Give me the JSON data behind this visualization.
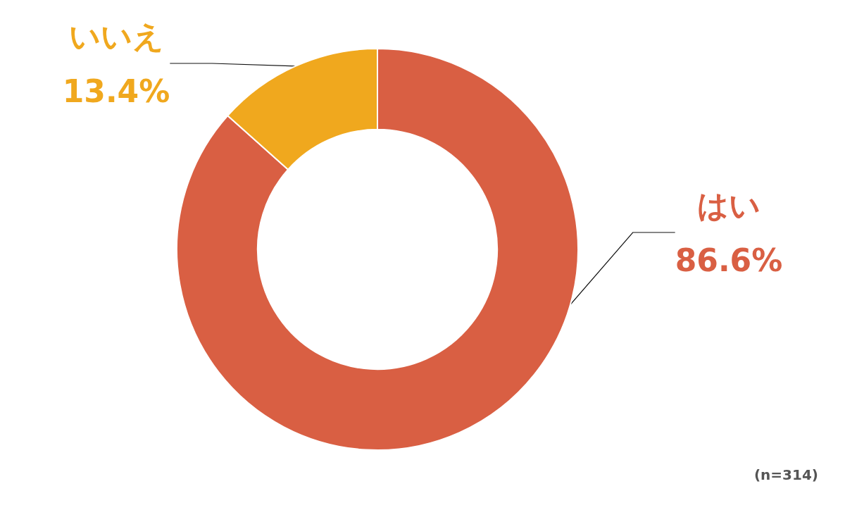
{
  "chart_data": {
    "type": "donut",
    "categories": [
      "はい",
      "いいえ"
    ],
    "values": [
      86.6,
      13.4
    ],
    "colors": [
      "#d95f43",
      "#f0a81e"
    ],
    "value_labels": [
      "86.6%",
      "13.4%"
    ],
    "annotations": [
      "(n=314)"
    ],
    "legend": false
  }
}
